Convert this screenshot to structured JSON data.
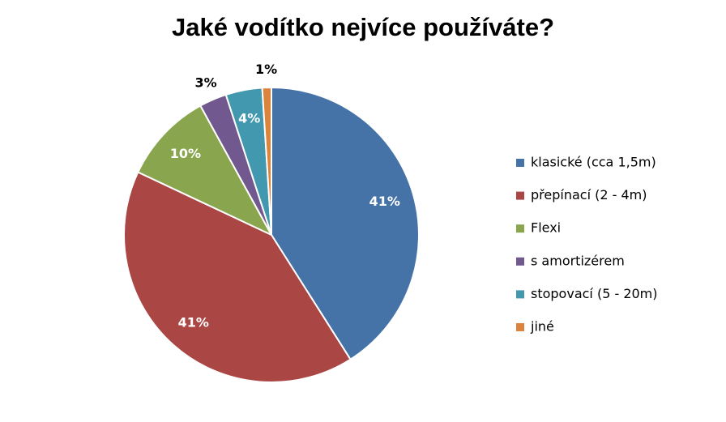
{
  "chart_data": {
    "type": "pie",
    "title": "Jaké vodítko nejvíce používáte?",
    "categories": [
      "klasické (cca 1,5m)",
      "přepínací (2 - 4m)",
      "Flexi",
      "s amortizérem",
      "stopovací (5 - 20m)",
      "jiné"
    ],
    "values": [
      41,
      41,
      10,
      3,
      4,
      1
    ],
    "value_labels": [
      "41%",
      "41%",
      "10%",
      "3%",
      "4%",
      "1%"
    ],
    "colors": [
      "#4572a7",
      "#aa4643",
      "#89a54e",
      "#71588f",
      "#4198af",
      "#db843d"
    ],
    "legend": "right"
  }
}
